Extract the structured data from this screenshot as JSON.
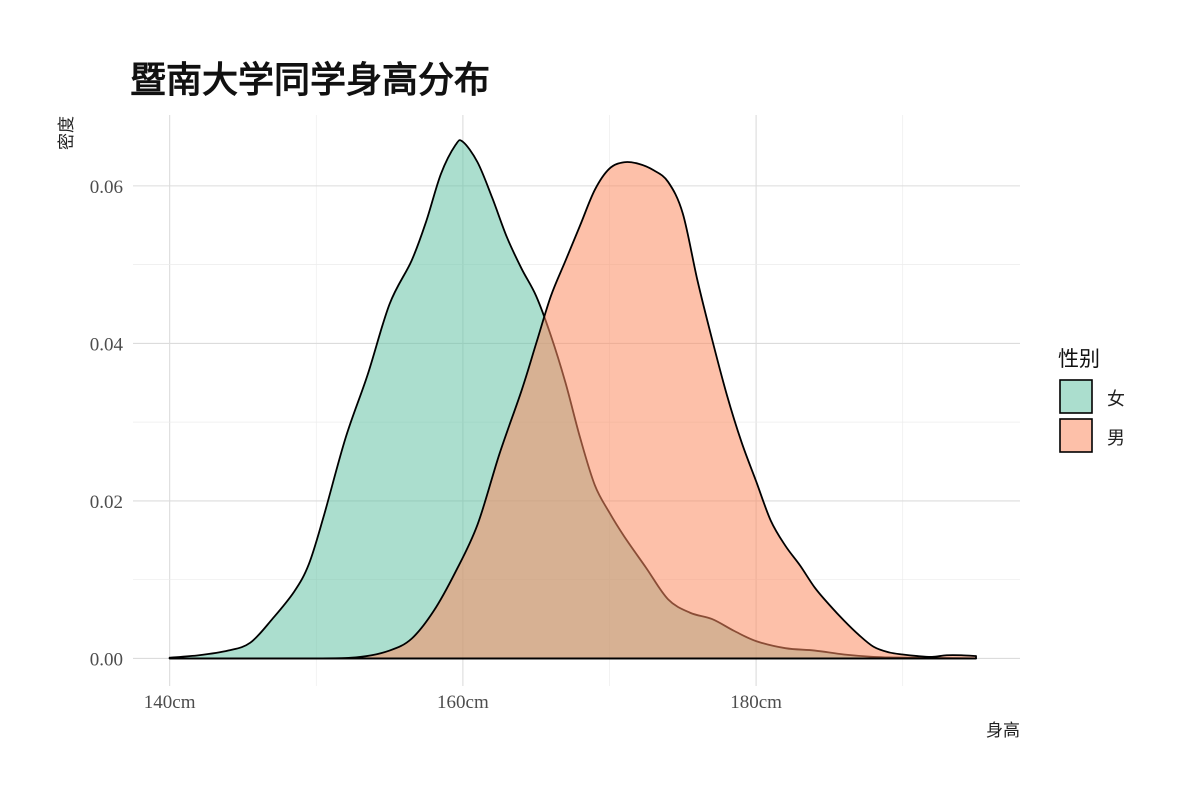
{
  "chart_data": {
    "type": "area",
    "title": "暨南大学同学身高分布",
    "xlabel": "身高",
    "ylabel": "密度",
    "xlim": [
      137.5,
      198
    ],
    "ylim": [
      -0.0035,
      0.069
    ],
    "x_ticks": [
      140,
      160,
      180
    ],
    "x_tick_labels": [
      "140cm",
      "160cm",
      "180cm"
    ],
    "y_ticks": [
      0.0,
      0.02,
      0.04,
      0.06
    ],
    "y_tick_labels": [
      "0.00",
      "0.02",
      "0.04",
      "0.06"
    ],
    "grid": true,
    "legend": {
      "title": "性别",
      "position": "right"
    },
    "series": [
      {
        "name": "女",
        "color": "#66c2a5",
        "points": [
          [
            140,
            0.0001
          ],
          [
            142,
            0.0004
          ],
          [
            144,
            0.001
          ],
          [
            145.5,
            0.002
          ],
          [
            147,
            0.005
          ],
          [
            148.5,
            0.0085
          ],
          [
            149.5,
            0.012
          ],
          [
            150.5,
            0.018
          ],
          [
            152,
            0.028
          ],
          [
            153.5,
            0.036
          ],
          [
            155,
            0.045
          ],
          [
            156.5,
            0.0505
          ],
          [
            157.5,
            0.0555
          ],
          [
            158.5,
            0.0615
          ],
          [
            159.5,
            0.0652
          ],
          [
            160,
            0.0656
          ],
          [
            161,
            0.063
          ],
          [
            162,
            0.0585
          ],
          [
            163,
            0.0535
          ],
          [
            164,
            0.0495
          ],
          [
            165,
            0.046
          ],
          [
            166,
            0.041
          ],
          [
            167,
            0.035
          ],
          [
            168,
            0.028
          ],
          [
            169,
            0.022
          ],
          [
            170,
            0.0185
          ],
          [
            171,
            0.0155
          ],
          [
            172.5,
            0.0115
          ],
          [
            174,
            0.0075
          ],
          [
            175.5,
            0.0058
          ],
          [
            177,
            0.005
          ],
          [
            178.5,
            0.0035
          ],
          [
            180,
            0.0022
          ],
          [
            182,
            0.0013
          ],
          [
            184,
            0.001
          ],
          [
            186,
            0.0005
          ],
          [
            188,
            0.0002
          ],
          [
            190,
            0.0001
          ],
          [
            195,
            0.0
          ]
        ]
      },
      {
        "name": "男",
        "color": "#fc8d62",
        "points": [
          [
            140,
            0.0
          ],
          [
            150,
            0.0
          ],
          [
            153,
            0.0002
          ],
          [
            155,
            0.001
          ],
          [
            156.5,
            0.0025
          ],
          [
            158,
            0.006
          ],
          [
            159.5,
            0.011
          ],
          [
            161,
            0.017
          ],
          [
            162.5,
            0.026
          ],
          [
            164,
            0.034
          ],
          [
            165,
            0.04
          ],
          [
            166,
            0.046
          ],
          [
            167,
            0.0505
          ],
          [
            168,
            0.055
          ],
          [
            169,
            0.0595
          ],
          [
            170,
            0.0622
          ],
          [
            171,
            0.063
          ],
          [
            172,
            0.0628
          ],
          [
            173,
            0.062
          ],
          [
            174,
            0.0605
          ],
          [
            175,
            0.0565
          ],
          [
            176,
            0.048
          ],
          [
            177,
            0.0405
          ],
          [
            178,
            0.0335
          ],
          [
            179,
            0.0275
          ],
          [
            180,
            0.0225
          ],
          [
            181,
            0.0175
          ],
          [
            182,
            0.0143
          ],
          [
            183,
            0.0118
          ],
          [
            184,
            0.009
          ],
          [
            185,
            0.0068
          ],
          [
            186,
            0.0048
          ],
          [
            187,
            0.003
          ],
          [
            188,
            0.0015
          ],
          [
            189,
            0.0008
          ],
          [
            190,
            0.0005
          ],
          [
            191,
            0.0003
          ],
          [
            192,
            0.0002
          ],
          [
            193,
            0.0004
          ],
          [
            194,
            0.0004
          ],
          [
            195,
            0.0003
          ]
        ]
      }
    ]
  }
}
